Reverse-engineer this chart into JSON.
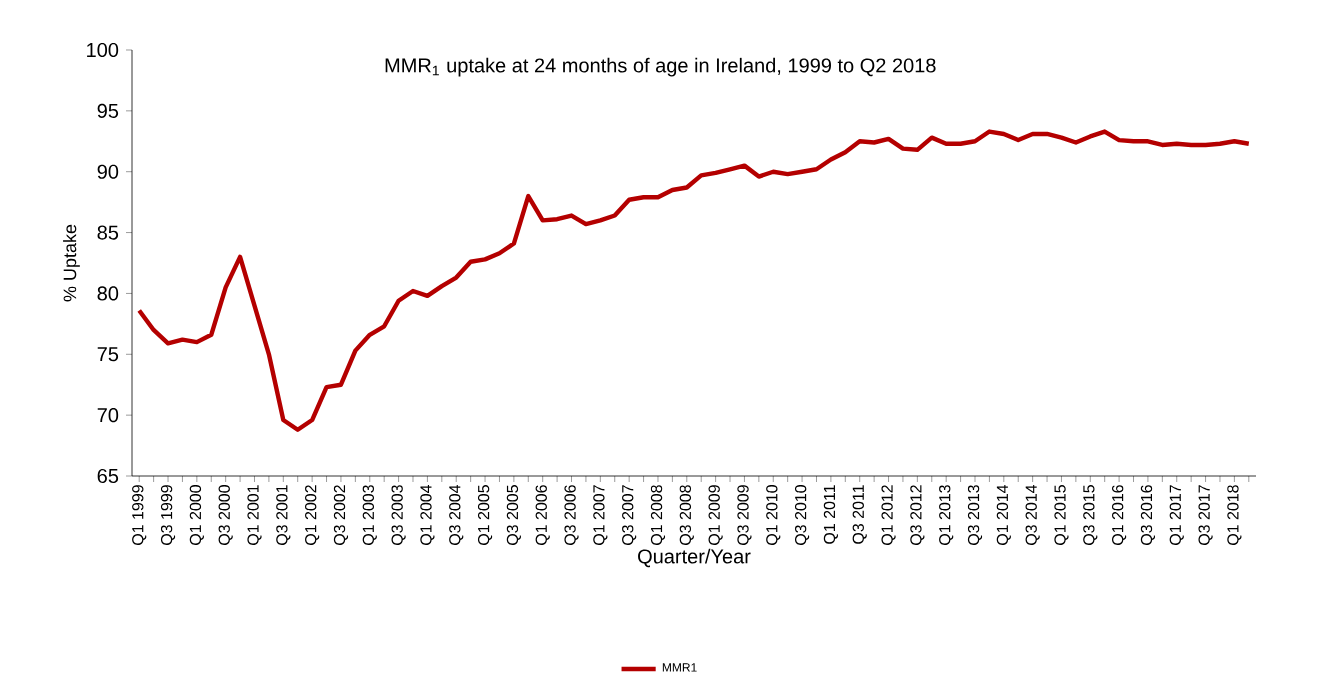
{
  "chart_data": {
    "type": "line",
    "title": "MMR$_{1}$ uptake at 24 months of age in Ireland,  1999 to Q2 2018",
    "xlabel": "Quarter/Year",
    "ylabel": "% Uptake",
    "categories": [
      "Q1 1999",
      null,
      "Q3 1999",
      null,
      "Q1 2000",
      null,
      "Q3 2000",
      null,
      "Q1 2001",
      null,
      "Q3 2001",
      null,
      "Q1 2002",
      null,
      "Q3 2002",
      null,
      "Q1 2003",
      null,
      "Q3 2003",
      null,
      "Q1 2004",
      null,
      "Q3 2004",
      null,
      "Q1 2005",
      null,
      "Q3 2005",
      null,
      "Q1 2006",
      null,
      "Q3 2006",
      null,
      "Q1 2007",
      null,
      "Q3 2007",
      null,
      "Q1 2008",
      null,
      "Q3 2008",
      null,
      "Q1 2009",
      null,
      "Q3 2009",
      null,
      "Q1 2010",
      null,
      "Q3 2010",
      null,
      "Q1 2011",
      null,
      "Q3 2011",
      null,
      "Q1 2012",
      null,
      "Q3 2012",
      null,
      "Q1 2013",
      null,
      "Q3 2013",
      null,
      "Q1 2014",
      null,
      "Q3 2014",
      null,
      "Q1 2015",
      null,
      "Q3 2015",
      null,
      "Q1 2016",
      null,
      "Q3 2016",
      null,
      "Q1 2017",
      null,
      "Q3 2017",
      null,
      "Q1 2018",
      null
    ],
    "series": [
      {
        "name": "MMR1",
        "color": "#b40000",
        "values": [
          78.6,
          77.0,
          75.9,
          76.2,
          76.0,
          76.6,
          80.5,
          83.0,
          79.0,
          75.0,
          69.6,
          68.8,
          69.6,
          72.3,
          72.5,
          75.3,
          76.6,
          77.3,
          79.4,
          80.2,
          79.8,
          80.6,
          81.3,
          82.6,
          82.8,
          83.3,
          84.1,
          88.0,
          86.0,
          86.1,
          86.4,
          85.7,
          86.0,
          86.4,
          87.7,
          87.9,
          87.9,
          88.5,
          88.7,
          89.7,
          89.9,
          90.2,
          90.5,
          89.6,
          90.0,
          89.8,
          90.0,
          90.2,
          91.0,
          91.6,
          92.5,
          92.4,
          92.7,
          91.9,
          91.8,
          92.8,
          92.3,
          92.3,
          92.5,
          93.3,
          93.1,
          92.6,
          93.1,
          93.1,
          92.8,
          92.4,
          92.9,
          93.3,
          92.6,
          92.5,
          92.5,
          92.2,
          92.3,
          92.2,
          92.2,
          92.3,
          92.5,
          92.3
        ]
      }
    ],
    "ylim": [
      65,
      100
    ],
    "yticks": [
      65,
      70,
      75,
      80,
      85,
      90,
      95,
      100
    ],
    "grid": false,
    "legend": "bottom",
    "marker": "none",
    "line_style": "solid"
  }
}
